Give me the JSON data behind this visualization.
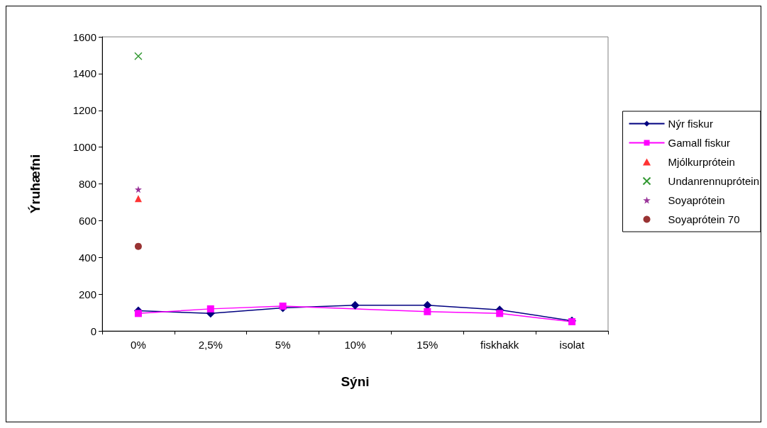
{
  "chart_data": {
    "type": "line",
    "xlabel": "Sýni",
    "ylabel": "Ýruhæfni",
    "categories": [
      "0%",
      "2,5%",
      "5%",
      "10%",
      "15%",
      "fiskhakk",
      "isolat"
    ],
    "series": [
      {
        "name": "Nýr fiskur",
        "color": "#000080",
        "marker": "diamond",
        "values": [
          110,
          95,
          125,
          140,
          140,
          115,
          55
        ]
      },
      {
        "name": "Gamall fiskur",
        "color": "#ff00ff",
        "marker": "square",
        "values": [
          95,
          120,
          135,
          null,
          105,
          95,
          50
        ]
      },
      {
        "name": "Mjólkurprótein",
        "type": "scatter",
        "color": "#ff0000",
        "marker": "triangle",
        "x": [
          "0%"
        ],
        "values": [
          720
        ]
      },
      {
        "name": "Undanrennuprótein",
        "type": "scatter",
        "color": "#008000",
        "marker": "cross",
        "x": [
          "0%"
        ],
        "values": [
          1495
        ]
      },
      {
        "name": "Soyaprótein",
        "type": "scatter",
        "color": "#800080",
        "marker": "star",
        "x": [
          "0%"
        ],
        "values": [
          770
        ]
      },
      {
        "name": "Soyaprótein 70",
        "type": "scatter",
        "color": "#800000",
        "marker": "circle",
        "x": [
          "0%"
        ],
        "values": [
          460
        ]
      }
    ],
    "ylim": [
      0,
      1600
    ],
    "yticks": [
      0,
      200,
      400,
      600,
      800,
      1000,
      1200,
      1400,
      1600
    ],
    "grid": false,
    "legend": "right"
  }
}
